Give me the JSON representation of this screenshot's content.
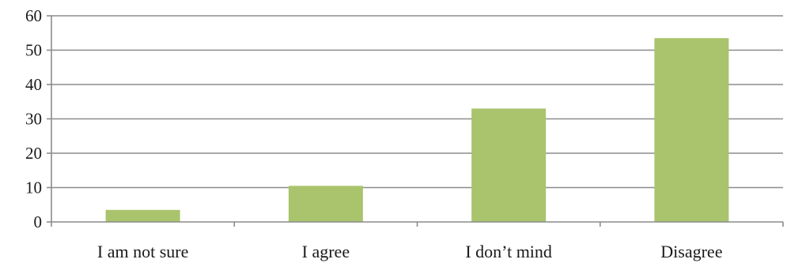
{
  "chart_data": {
    "type": "bar",
    "categories": [
      "I am not sure",
      "I agree",
      "I don’t mind",
      "Disagree"
    ],
    "values": [
      3.5,
      10.5,
      33,
      53.5
    ],
    "title": "",
    "xlabel": "",
    "ylabel": "",
    "ylim": [
      0,
      60
    ],
    "yticks": [
      0,
      10,
      20,
      30,
      40,
      50,
      60
    ],
    "ytick_labels": [
      "0",
      "10",
      "20",
      "30",
      "40",
      "50",
      "60"
    ],
    "grid": "horizontal",
    "legend": "none",
    "colors": {
      "bar": "#a9c46c",
      "grid": "#8c8c8c",
      "axis": "#8c8c8c",
      "text": "#1a1a1a"
    }
  }
}
